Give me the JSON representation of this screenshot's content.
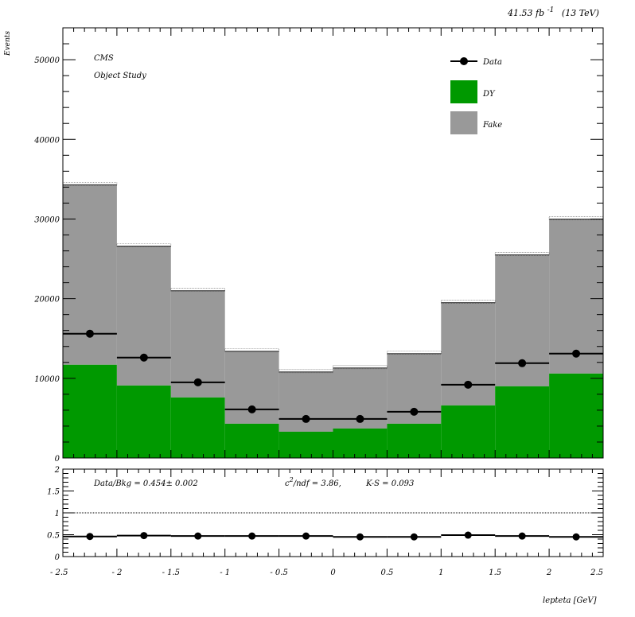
{
  "header": {
    "lumi_value": "41.53",
    "lumi_unit": "fb",
    "lumi_exp": "-1",
    "energy": "(13 TeV)"
  },
  "annotations": {
    "experiment": "CMS",
    "study": "Object Study"
  },
  "ratio_text": {
    "databkg": "Data/Bkg = 0.454± 0.002",
    "chi_c": "c",
    "chi_sup": "2",
    "chi_rest": "/ndf = 3.86,",
    "ks": "K-S = 0.093"
  },
  "colors": {
    "dy": "#009900",
    "fake": "#999999",
    "data": "#000000"
  },
  "chart_data": [
    {
      "type": "bar",
      "stacked": true,
      "ylabel": "Events",
      "xlim": [
        -2.5,
        2.5
      ],
      "ylim": [
        0,
        54000
      ],
      "y_ticks": [
        0,
        10000,
        20000,
        30000,
        40000,
        50000
      ],
      "bin_edges": [
        -2.5,
        -2.0,
        -1.5,
        -1.0,
        -0.5,
        0.0,
        0.5,
        1.0,
        1.5,
        2.0,
        2.5
      ],
      "legend_position": "top-right",
      "legend": [
        "Data",
        "DY",
        "Fake"
      ],
      "series": [
        {
          "name": "DY",
          "kind": "stack",
          "values": [
            11700,
            9100,
            7600,
            4300,
            3300,
            3700,
            4300,
            6600,
            9000,
            10600
          ]
        },
        {
          "name": "Fake",
          "kind": "stack",
          "values": [
            22600,
            17500,
            13400,
            9100,
            7500,
            7600,
            8800,
            12900,
            16500,
            19400
          ]
        },
        {
          "name": "Data",
          "kind": "points",
          "values": [
            15600,
            12600,
            9500,
            6100,
            4900,
            4900,
            5800,
            9200,
            11900,
            13100
          ]
        }
      ]
    },
    {
      "type": "scatter",
      "xlabel": "lepteta [GeV]",
      "xlim": [
        -2.5,
        2.5
      ],
      "ylim": [
        0,
        2
      ],
      "x_ticks": [
        -2.5,
        -2,
        -1.5,
        -1,
        -0.5,
        0,
        0.5,
        1,
        1.5,
        2,
        2.5
      ],
      "x_tick_labels": [
        "- 2.5",
        "- 2",
        "- 1.5",
        "- 1",
        "- 0.5",
        "0",
        "0.5",
        "1",
        "1.5",
        "2",
        "2.5"
      ],
      "y_ticks": [
        0,
        0.5,
        1,
        1.5,
        2
      ],
      "y_tick_labels": [
        "0",
        "0.5",
        "1",
        "1.5",
        "2"
      ],
      "reference_line": 1,
      "series": [
        {
          "name": "Data/Bkg",
          "values": [
            0.46,
            0.48,
            0.47,
            0.47,
            0.47,
            0.45,
            0.45,
            0.49,
            0.47,
            0.45
          ]
        }
      ]
    }
  ]
}
